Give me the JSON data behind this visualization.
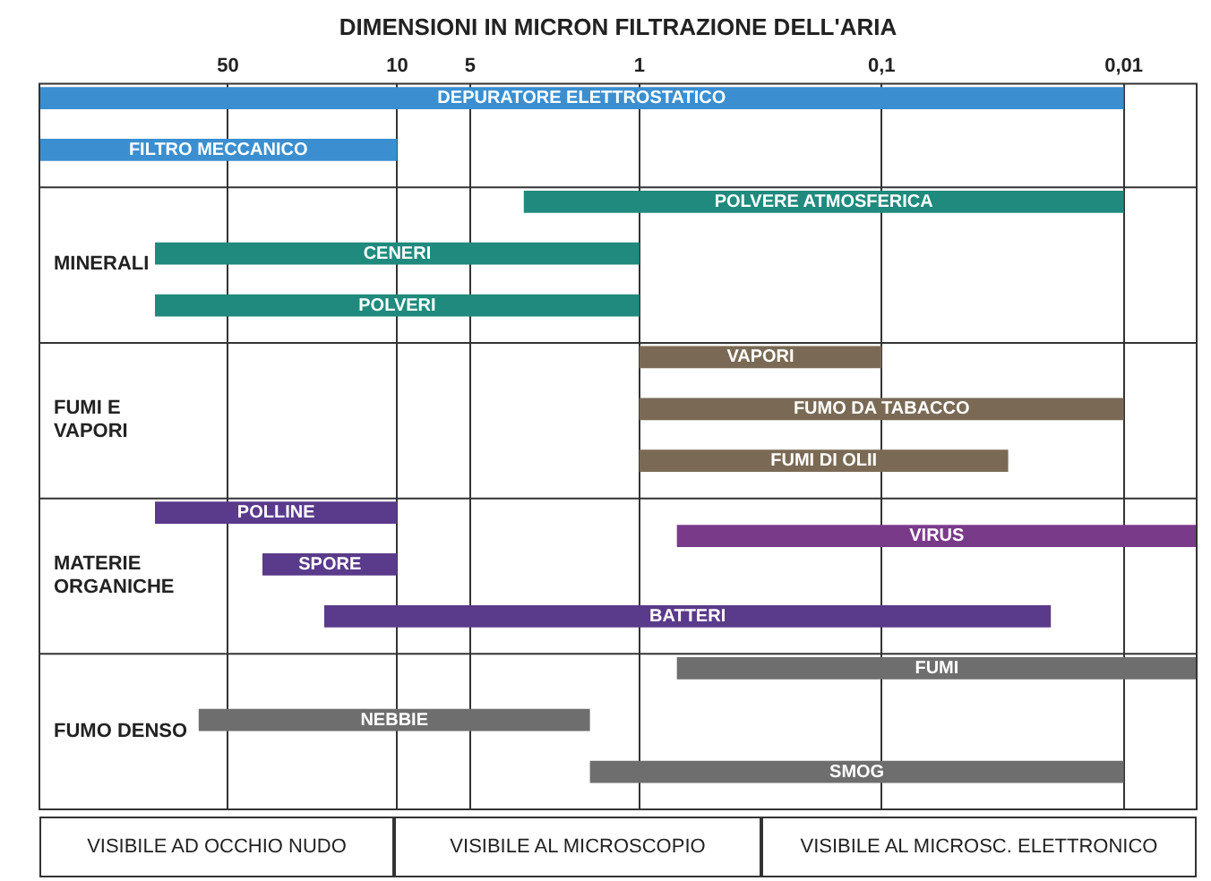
{
  "chart_data": {
    "type": "bar",
    "orientation": "horizontal",
    "title": "DIMENSIONI IN MICRON FILTRAZIONE DELL'ARIA",
    "categories": [
      null,
      null,
      null,
      null,
      null,
      null,
      null,
      null,
      null,
      null,
      null,
      null,
      null,
      null
    ],
    "series": [
      {
        "values": [
          299.99,
          290,
          2.99,
          99,
          99,
          0.9,
          0.99,
          0.97,
          90,
          26,
          19.98,
          0.695,
          64.4,
          1.59
        ],
        "base": [
          0.01,
          10,
          0.01,
          1,
          1,
          0.1,
          0.01,
          0.03,
          10,
          10,
          0.02,
          0.005,
          1.6,
          0.01
        ],
        "colors": [
          "#3b8fd0",
          "#3b8fd0",
          "#1f8a7d",
          "#1f8a7d",
          "#1f8a7d",
          "#7a6a55",
          "#7a6a55",
          "#7a6a55",
          "#5a3a8a",
          "#5a3a8a",
          "#5a3a8a",
          "#6e6e6e",
          "#6e6e6e",
          "#6e6e6e"
        ],
        "value_labels": [
          "DEPURATORE ELETTROSTATICO",
          "FILTRO MECCANICO",
          "POLVERE ATMOSFERICA",
          "CENERI",
          "POLVERI",
          "VAPORI",
          "FUMO DA TABACCO",
          "FUMI DI OLII",
          "POLLINE",
          "SPORE",
          "BATTERI",
          "FUMI",
          "NEBBIE",
          "SMOG"
        ]
      },
      {
        "values": [
          null,
          null,
          null,
          null,
          null,
          null,
          null,
          null,
          0.695,
          null,
          null,
          null,
          null,
          null
        ],
        "base": [
          null,
          null,
          null,
          null,
          null,
          null,
          null,
          null,
          0.005,
          null,
          null,
          null,
          null,
          null
        ],
        "colors": [
          null,
          null,
          null,
          null,
          null,
          null,
          null,
          null,
          "#7a3a8a",
          null,
          null,
          null,
          null,
          null
        ],
        "value_labels": [
          null,
          null,
          null,
          null,
          null,
          null,
          null,
          null,
          "VIRUS",
          null,
          null,
          null,
          null,
          null
        ]
      }
    ],
    "log": "x",
    "xlim": [
      300,
      0.005
    ],
    "xticks": [
      50,
      10,
      5,
      1,
      {
        "value": 0.1,
        "label": "0,1"
      },
      {
        "value": 0.01,
        "label": "0,01"
      }
    ],
    "grid": "x",
    "annotations": [
      "MINERALI",
      "FUMI E VAPORI",
      "MATERIE ORGANICHE",
      "FUMO DENSO",
      "VISIBILE AD OCCHIO NUDO",
      "VISIBILE AL MICROSCOPIO",
      "VISIBILE AL MICROSC. ELETTRONICO"
    ]
  }
}
